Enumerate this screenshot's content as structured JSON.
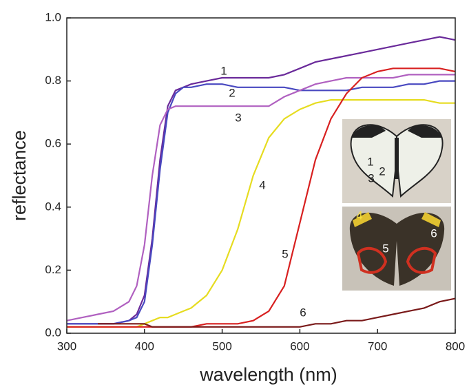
{
  "chart_data": {
    "type": "line",
    "xlabel": "wavelength (nm)",
    "ylabel": "reflectance",
    "x": [
      300,
      320,
      340,
      360,
      380,
      390,
      400,
      410,
      420,
      430,
      440,
      450,
      460,
      480,
      500,
      520,
      540,
      560,
      580,
      600,
      620,
      640,
      660,
      680,
      700,
      720,
      740,
      760,
      780,
      800
    ],
    "series": [
      {
        "name": "1",
        "color": "#6a2a9a",
        "values": [
          0.03,
          0.03,
          0.03,
          0.03,
          0.04,
          0.06,
          0.12,
          0.3,
          0.55,
          0.72,
          0.77,
          0.78,
          0.79,
          0.8,
          0.81,
          0.81,
          0.81,
          0.81,
          0.82,
          0.84,
          0.86,
          0.87,
          0.88,
          0.89,
          0.9,
          0.91,
          0.92,
          0.93,
          0.94,
          0.93
        ]
      },
      {
        "name": "2",
        "color": "#4848c0",
        "values": [
          0.03,
          0.03,
          0.03,
          0.03,
          0.04,
          0.05,
          0.1,
          0.28,
          0.52,
          0.7,
          0.76,
          0.78,
          0.78,
          0.79,
          0.79,
          0.78,
          0.78,
          0.78,
          0.78,
          0.77,
          0.77,
          0.77,
          0.77,
          0.78,
          0.78,
          0.78,
          0.79,
          0.79,
          0.8,
          0.8
        ]
      },
      {
        "name": "3",
        "color": "#b060c0",
        "values": [
          0.04,
          0.05,
          0.06,
          0.07,
          0.1,
          0.15,
          0.28,
          0.5,
          0.66,
          0.71,
          0.72,
          0.72,
          0.72,
          0.72,
          0.72,
          0.72,
          0.72,
          0.72,
          0.75,
          0.77,
          0.79,
          0.8,
          0.81,
          0.81,
          0.81,
          0.81,
          0.82,
          0.82,
          0.82,
          0.82
        ]
      },
      {
        "name": "4",
        "color": "#e6dc20",
        "values": [
          0.02,
          0.02,
          0.02,
          0.02,
          0.02,
          0.02,
          0.03,
          0.04,
          0.05,
          0.05,
          0.06,
          0.07,
          0.08,
          0.12,
          0.2,
          0.33,
          0.5,
          0.62,
          0.68,
          0.71,
          0.73,
          0.74,
          0.74,
          0.74,
          0.74,
          0.74,
          0.74,
          0.74,
          0.73,
          0.73
        ]
      },
      {
        "name": "5",
        "color": "#d82020",
        "values": [
          0.02,
          0.02,
          0.02,
          0.02,
          0.02,
          0.02,
          0.02,
          0.02,
          0.02,
          0.02,
          0.02,
          0.02,
          0.02,
          0.03,
          0.03,
          0.03,
          0.04,
          0.07,
          0.15,
          0.35,
          0.55,
          0.68,
          0.76,
          0.81,
          0.83,
          0.84,
          0.84,
          0.84,
          0.84,
          0.83
        ]
      },
      {
        "name": "6",
        "color": "#7a1a1a",
        "values": [
          null,
          null,
          0.03,
          0.03,
          0.03,
          0.03,
          0.03,
          0.02,
          0.02,
          0.02,
          0.02,
          0.02,
          0.02,
          0.02,
          0.02,
          0.02,
          0.02,
          0.02,
          0.02,
          0.02,
          0.03,
          0.03,
          0.04,
          0.04,
          0.05,
          0.06,
          0.07,
          0.08,
          0.1,
          0.11
        ]
      }
    ],
    "xlim": [
      300,
      800
    ],
    "xticks": [
      300,
      400,
      500,
      600,
      700,
      800
    ],
    "ylim": [
      0,
      1
    ],
    "yticks": [
      {
        "value": 0,
        "label": "0.0"
      },
      0.2,
      0.4,
      0.6,
      0.8,
      {
        "value": 1,
        "label": "1.0"
      }
    ]
  }
}
